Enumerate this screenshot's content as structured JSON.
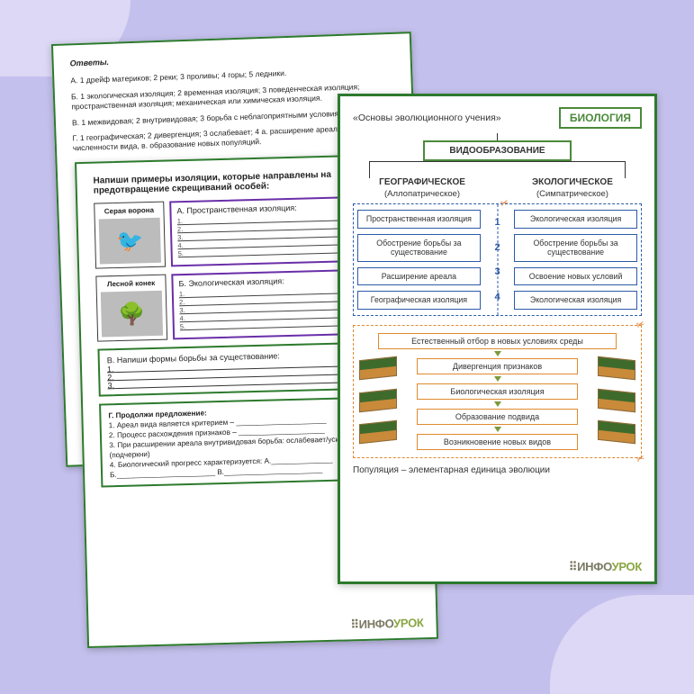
{
  "sheet1": {
    "heading": "Ответы.",
    "lines": [
      "А. 1 дрейф материков; 2 реки; 3 проливы; 4 горы; 5 ледники.",
      "Б. 1 экологическая изоляция; 2 временная изоляция; 3 поведенческая изоляция; пространственная изоляция; механическая или химическая изоляция.",
      "В. 1 межвидовая; 2 внутривидовая; 3 борьба с неблагоприятными условиями среды.",
      "Г. 1 географическая; 2 дивергенция; 3 ослабевает; 4 а. расширение ареала, б. рост численности вида, в. образование новых популяций."
    ]
  },
  "sheet2": {
    "title": "Напиши примеры изоляции, которые направлены на предотвращение   скрещиваний особей:",
    "rowA": {
      "label": "Серая ворона",
      "head": "А. Пространственная изоляция:",
      "icon": "🐦"
    },
    "rowB": {
      "label": "Лесной конек",
      "head": "Б. Экологическая изоляция:",
      "icon": "🌳"
    },
    "blockC_head": "В. Напиши формы борьбы за существование:",
    "blockG_head": "Г. Продолжи предложение:",
    "g_lines": [
      "1. Ареал вида является критерием – ______________________",
      "2. Процесс расхождения признаков – _____________________",
      "3. При расширении ареала внутривидовая борьба: ослабевает/усиливается (подчеркни)",
      "4. Биологический прогресс характеризуется: А._______________",
      "Б.________________________ В.________________________"
    ]
  },
  "sheet3": {
    "topic": "«Основы эволюционного учения»",
    "subject": "БИОЛОГИЯ",
    "main_node": "ВИДООБРАЗОВАНИЕ",
    "left_head": "ГЕОГРАФИЧЕСКОЕ",
    "left_sub": "(Аллопатрическое)",
    "right_head": "ЭКОЛОГИЧЕСКОЕ",
    "right_sub": "(Симпатрическое)",
    "left_boxes": [
      "Пространственная изоляция",
      "Обострение борьбы за существование",
      "Расширение ареала",
      "Географическая изоляция"
    ],
    "right_boxes": [
      "Экологическая изоляция",
      "Обострение борьбы за существование",
      "Освоение новых условий",
      "Экологическая изоляция"
    ],
    "nums": [
      "1",
      "2",
      "3",
      "4"
    ],
    "flow": [
      "Естественный отбор в новых условиях среды",
      "Дивергенция признаков",
      "Биологическая изоляция",
      "Образование подвида",
      "Возникновение новых видов"
    ],
    "footer": "Популяция – элементарная единица эволюции"
  },
  "logo": {
    "p1": "ИНФО",
    "p2": "УРОК",
    "bullets": "⠿"
  },
  "lines5": [
    "1.",
    "2.",
    "3.",
    "4.",
    "5."
  ],
  "lines3": [
    "1.",
    "2.",
    "3."
  ],
  "colors": {
    "page_bg": "#c4c0ed",
    "swoosh": "#dcd8f5",
    "green_border": "#2d7a2d",
    "purple_border": "#6a2ea8",
    "blue": "#2c5aa8",
    "orange": "#e08a2e"
  }
}
